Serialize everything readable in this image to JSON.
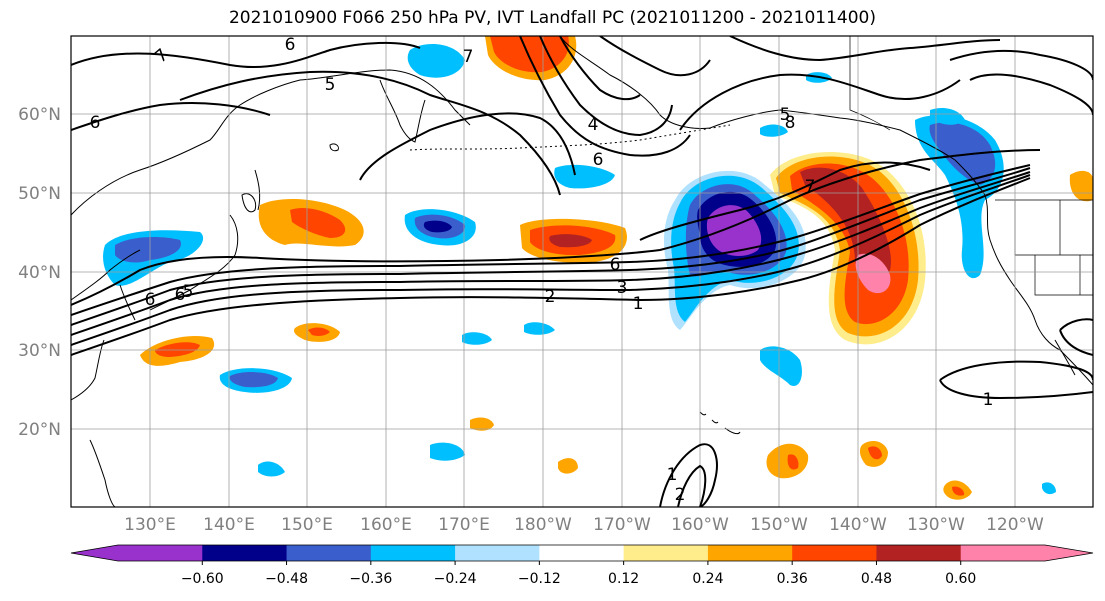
{
  "title": "2021010900 F066 250 hPa PV, IVT Landfall PC (2021011200 - 2021011400)",
  "map": {
    "lat_labels": [
      "60°N",
      "50°N",
      "40°N",
      "30°N",
      "20°N"
    ],
    "lon_labels": [
      "130°E",
      "140°E",
      "150°E",
      "160°E",
      "170°E",
      "180°W",
      "170°W",
      "160°W",
      "150°W",
      "140°W",
      "130°W",
      "120°W"
    ],
    "contour_labels": [
      "6",
      "7",
      "5",
      "6",
      "7",
      "6",
      "6",
      "4",
      "5",
      "8",
      "7",
      "6",
      "2",
      "3",
      "1",
      "6",
      "4",
      "5",
      "1",
      "1",
      "2"
    ]
  },
  "colorbar": {
    "colors": [
      "#9932cc",
      "#00008b",
      "#3a5fcd",
      "#00bfff",
      "#b0e2ff",
      "#ffffff",
      "#ffec8b",
      "#ffa500",
      "#ff4500",
      "#b22222",
      "#ff82ab"
    ],
    "ticks": [
      "−0.60",
      "−0.48",
      "−0.36",
      "−0.24",
      "−0.12",
      "0.12",
      "0.24",
      "0.36",
      "0.48",
      "0.60"
    ]
  }
}
